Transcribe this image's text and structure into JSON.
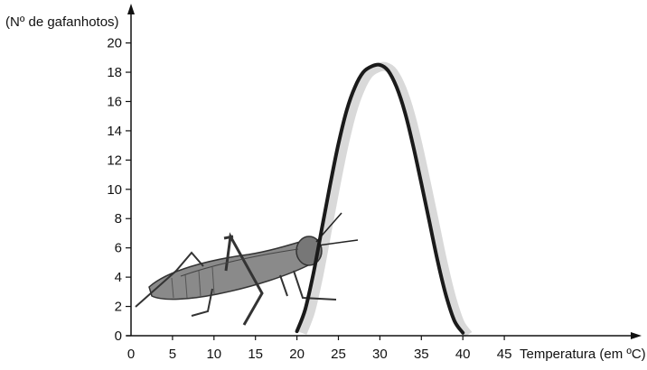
{
  "chart_data": {
    "type": "line",
    "ylabel": "(Nº de gafanhotos)",
    "xlabel": "Temperatura (em ºC)",
    "x_ticks": [
      0,
      5,
      10,
      15,
      20,
      25,
      30,
      35,
      40,
      45
    ],
    "y_ticks": [
      0,
      2,
      4,
      6,
      8,
      10,
      12,
      14,
      16,
      18,
      20
    ],
    "xlim": [
      0,
      45
    ],
    "ylim": [
      0,
      20
    ],
    "grid": false,
    "series": [
      {
        "color": "#1a1a1a",
        "x": [
          20,
          21,
          22,
          23,
          24,
          25,
          26,
          27,
          28,
          29,
          30,
          31,
          32,
          33,
          34,
          35,
          36,
          37,
          38,
          39,
          40
        ],
        "y": [
          0.3,
          1.8,
          4.3,
          7.3,
          10.3,
          13.1,
          15.4,
          17.0,
          18.0,
          18.4,
          18.5,
          18.1,
          17.0,
          15.3,
          13.0,
          10.4,
          7.7,
          5.0,
          2.7,
          1.0,
          0.2
        ]
      }
    ]
  }
}
